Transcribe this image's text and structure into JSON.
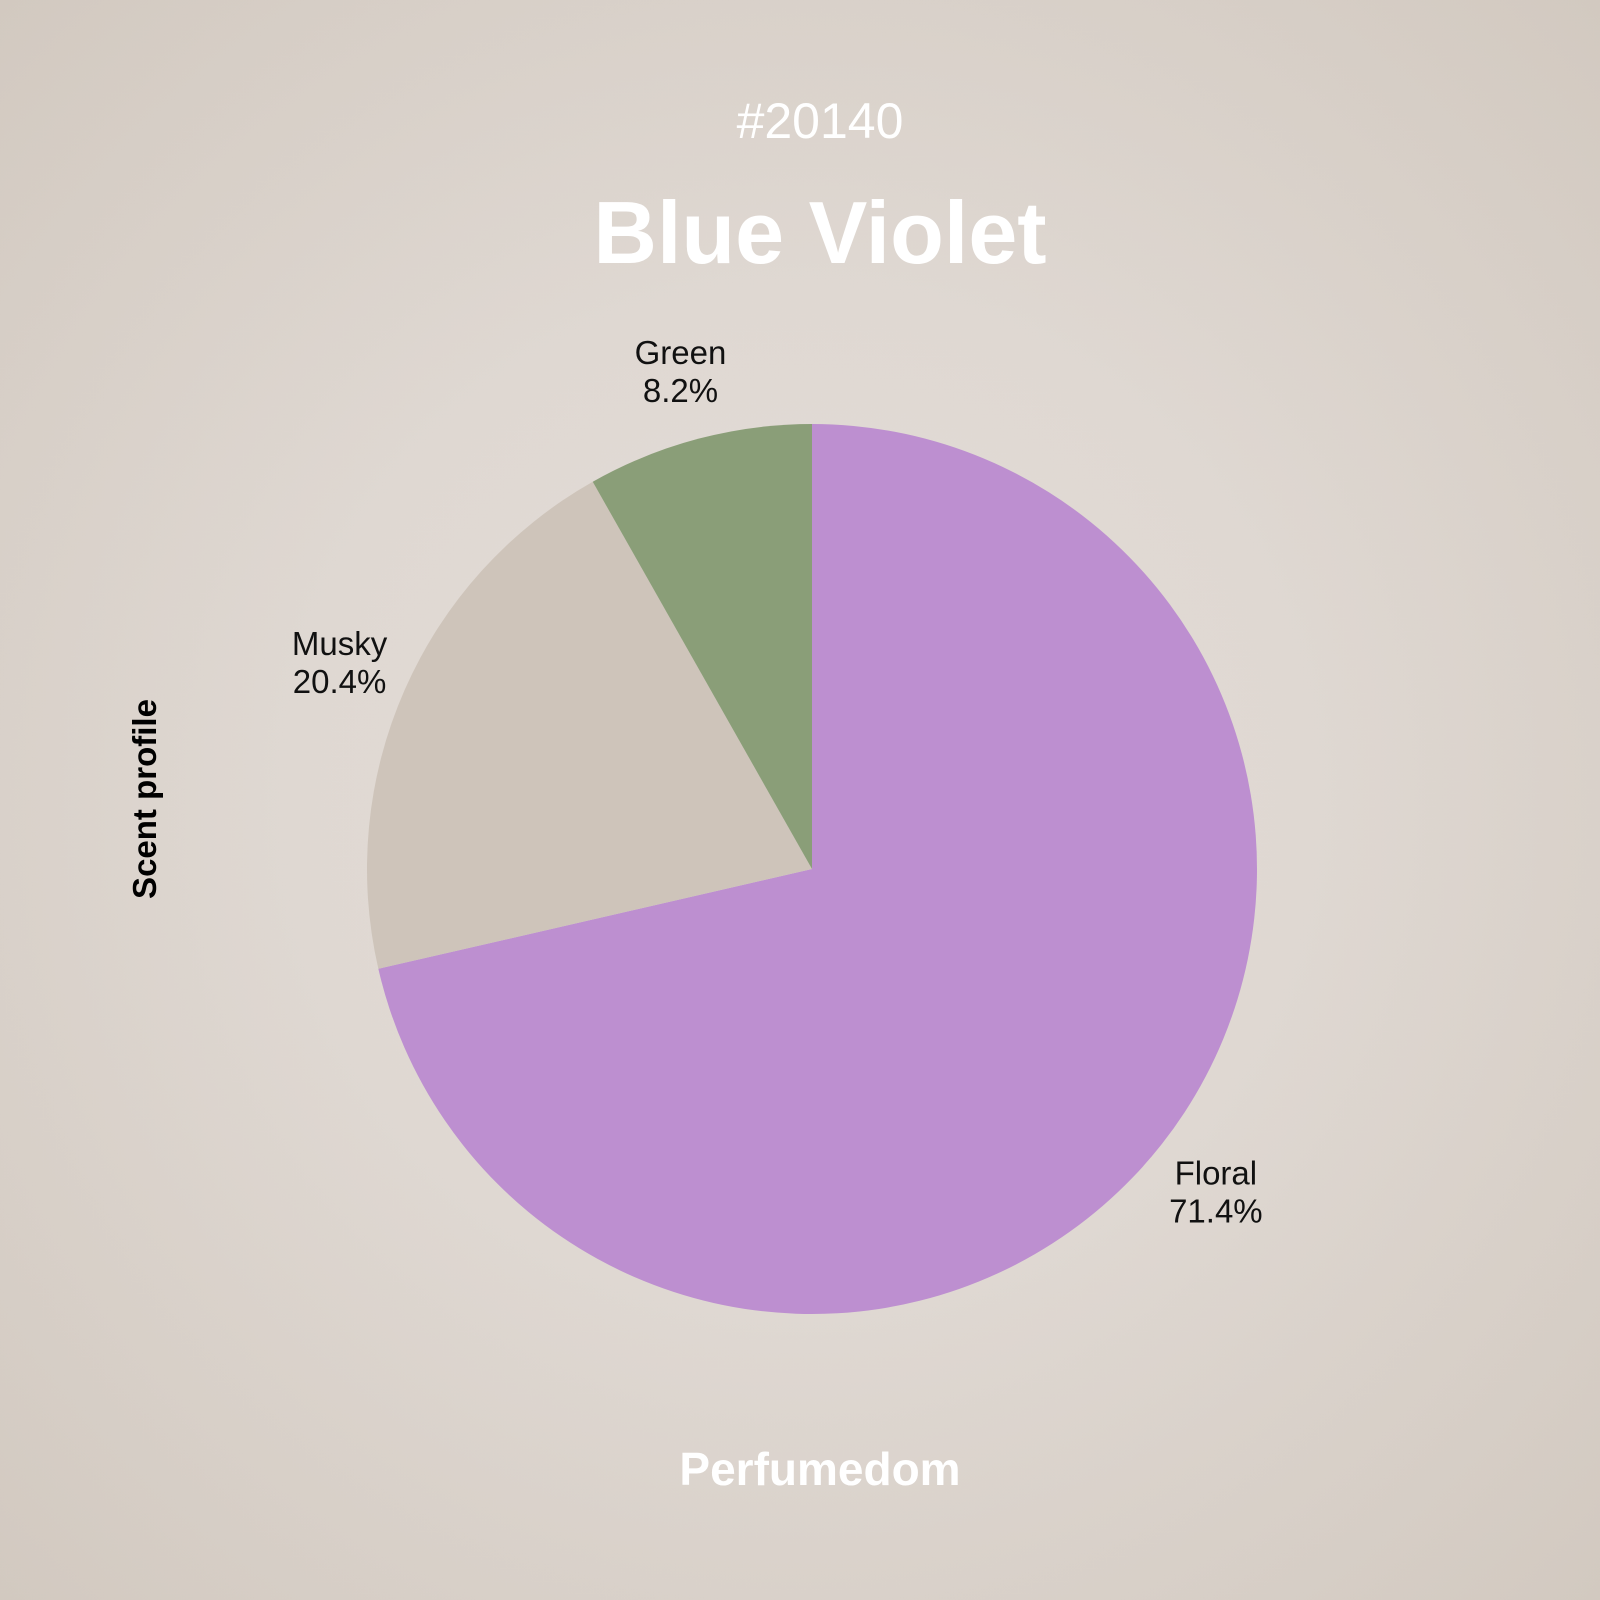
{
  "header": {
    "code": "#20140",
    "title": "Blue Violet"
  },
  "footer": {
    "brand": "Perfumedom"
  },
  "chart_data": {
    "type": "pie",
    "ylabel": "Scent profile",
    "start": "top",
    "direction": "clockwise",
    "slices": [
      {
        "label": "Floral",
        "value": 71.4,
        "value_label": "71.4%",
        "color": "#bd8fd0"
      },
      {
        "label": "Musky",
        "value": 20.4,
        "value_label": "20.4%",
        "color": "#cec4ba"
      },
      {
        "label": "Green",
        "value": 8.2,
        "value_label": "8.2%",
        "color": "#8a9e78"
      }
    ]
  }
}
